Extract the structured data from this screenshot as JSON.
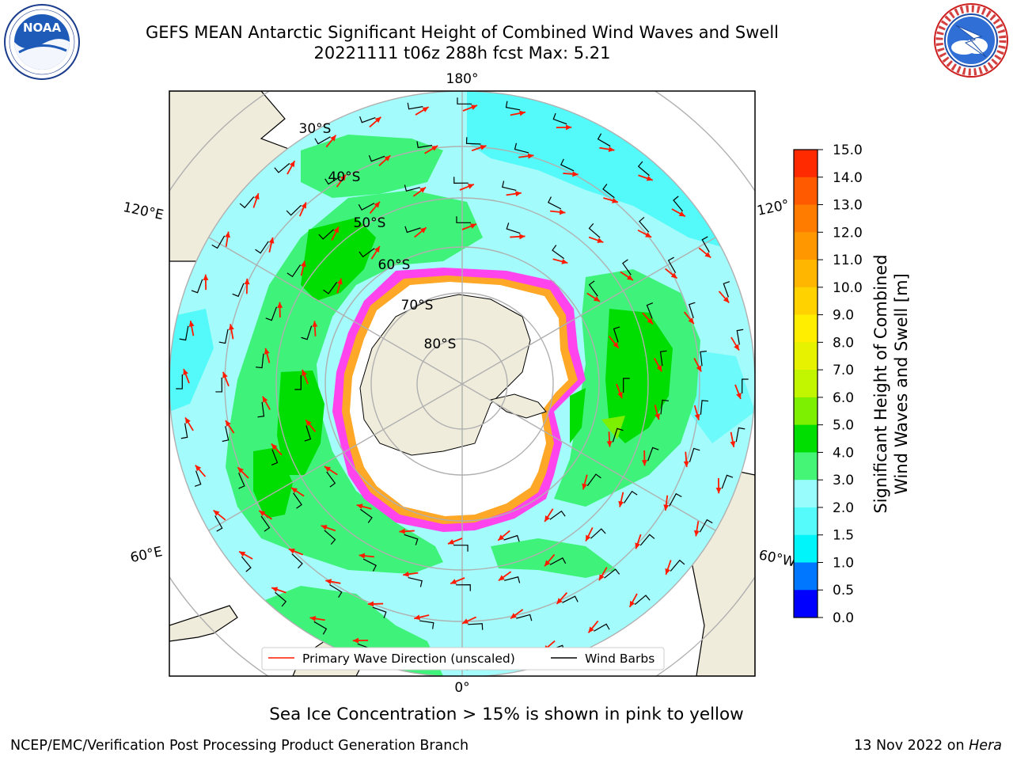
{
  "header": {
    "title_line1": "GEFS MEAN Antarctic Significant Height of Combined Wind Waves and Swell",
    "title_line2": "20221111 t06z 288h fcst   Max: 5.21"
  },
  "logos": {
    "left": {
      "name": "NOAA",
      "ring_text": "NATIONAL OCEANIC AND ATMOSPHERIC ADMINISTRATION · U.S. DEPARTMENT OF COMMERCE"
    },
    "right": {
      "name": "NATIONAL WEATHER SERVICE"
    }
  },
  "map": {
    "longitude_labels": {
      "top": "180°",
      "bottom": "0°",
      "upper_left": "120°E",
      "lower_left": "60°E",
      "upper_right": "120°",
      "lower_right": "60°W"
    },
    "latitude_labels": [
      "30°S",
      "40°S",
      "50°S",
      "60°S",
      "70°S",
      "80°S"
    ],
    "legend": {
      "wave_direction": "Primary Wave Direction (unscaled)",
      "wind_barbs": "Wind Barbs"
    },
    "colors": {
      "land": "#efecdc",
      "ice_pink": "#ff44ee",
      "ice_orange": "#ffa726",
      "grid": "#b0b0b0",
      "arrow": "#ff1a00",
      "barb": "#000000"
    }
  },
  "colorbar": {
    "label_line1": "Significant Height of Combined",
    "label_line2": "Wind Waves and Swell [m]",
    "ticks": [
      "15.0",
      "14.0",
      "13.0",
      "12.0",
      "11.0",
      "10.0",
      "9.0",
      "8.0",
      "7.0",
      "6.0",
      "5.0",
      "4.0",
      "3.0",
      "2.0",
      "1.5",
      "1.0",
      "0.5",
      "0.0"
    ],
    "colors": [
      "#ff0000",
      "#ff2a00",
      "#ff5a00",
      "#ff7c00",
      "#ff9800",
      "#ffb600",
      "#ffd200",
      "#ffee00",
      "#e6f200",
      "#c2f500",
      "#7cf000",
      "#00dd00",
      "#44f576",
      "#99fcfc",
      "#55fbfb",
      "#00f5fa",
      "#0077ff",
      "#0000ff"
    ]
  },
  "footer": {
    "note": "Sea Ice Concentration > 15% is shown in pink to yellow",
    "left": "NCEP/EMC/Verification Post Processing Product Generation Branch",
    "right_date": "13 Nov 2022 on",
    "right_host": "Hera"
  }
}
